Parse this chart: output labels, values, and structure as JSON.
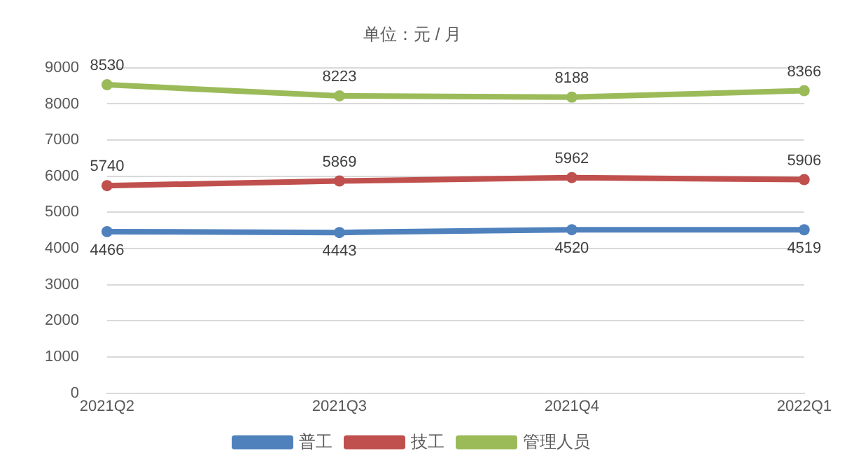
{
  "chart_data": {
    "type": "line",
    "title": "单位：元 / 月",
    "categories": [
      "2021Q2",
      "2021Q3",
      "2021Q4",
      "2022Q1"
    ],
    "series": [
      {
        "name": "普工",
        "color": "#4f81bd",
        "values": [
          4466,
          4443,
          4520,
          4519
        ]
      },
      {
        "name": "技工",
        "color": "#c0504d",
        "values": [
          5740,
          5869,
          5962,
          5906
        ]
      },
      {
        "name": "管理人员",
        "color": "#9bbb59",
        "values": [
          8530,
          8223,
          8188,
          8366
        ]
      }
    ],
    "ylim": [
      0,
      9000
    ],
    "yticks": [
      0,
      1000,
      2000,
      3000,
      4000,
      5000,
      6000,
      7000,
      8000,
      9000
    ],
    "grid": "y",
    "legend": "bottom",
    "marker": "circle",
    "line_style": "solid",
    "data_labels": true
  }
}
